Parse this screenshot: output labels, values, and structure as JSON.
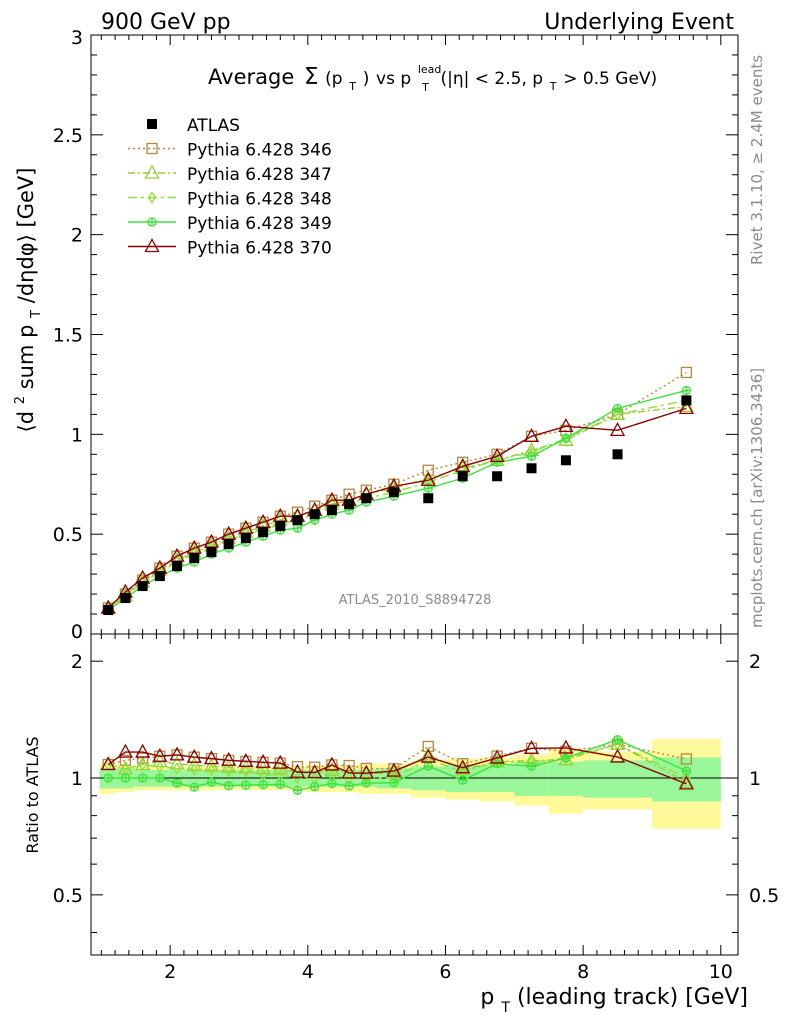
{
  "header": {
    "left": "900 GeV pp",
    "right": "Underlying Event"
  },
  "side_labels": {
    "rivet": "Rivet 3.1.10, ≥ 2.4M events",
    "mcplots": "mcplots.cern.ch [arXiv:1306.3436]"
  },
  "analysis_id": "ATLAS_2010_S8894728",
  "title_parts": {
    "average": "Average",
    "sigma": "Σ",
    "p": "(p",
    "sub_T": "T",
    "close": ")",
    "vs": " vs p",
    "sup_lead": "lead",
    "rest_a": " (|η| < 2.5, p",
    "rest_b": " > 0.5 GeV)"
  },
  "ylabel_parts": {
    "open": "⟨d",
    "sup2": "2",
    "mid": " sum p",
    "sub_T": "T",
    "rest": "/dηdφ⟩ [GeV]"
  },
  "xlabel_parts": {
    "p": "p",
    "sub_T": "T",
    "rest": " (leading track) [GeV]"
  },
  "ratio_ylabel": "Ratio to ATLAS",
  "colors": {
    "data": "#000000",
    "p346": "#b8863b",
    "p347": "#9acd32",
    "p348": "#8fe03a",
    "p349": "#3ce33c",
    "p370": "#8b0000",
    "band_inner": "#99f799",
    "band_outer": "#fffa99"
  },
  "chart_data": {
    "type": "scatter",
    "x_label": "p_T (leading track) [GeV]",
    "y_label": "⟨d² sum p_T/dηdφ⟩ [GeV]",
    "xlim": [
      0.85,
      10.25
    ],
    "main_ylim": [
      0,
      3
    ],
    "ratio_ylim": [
      0.35,
      2.35
    ],
    "x_ticks": [
      "2",
      "4",
      "6",
      "8",
      "10"
    ],
    "main_y_ticks": [
      "0",
      "0.5",
      "1",
      "1.5",
      "2",
      "2.5",
      "3"
    ],
    "ratio_y_ticks": [
      "0.5",
      "1",
      "2"
    ],
    "x": [
      1.1,
      1.35,
      1.6,
      1.85,
      2.1,
      2.35,
      2.6,
      2.85,
      3.1,
      3.35,
      3.6,
      3.85,
      4.1,
      4.35,
      4.6,
      4.85,
      5.25,
      5.75,
      6.25,
      6.75,
      7.25,
      7.75,
      8.5,
      9.5
    ],
    "x_bin_edges": [
      0.975,
      1.225,
      1.475,
      1.725,
      1.975,
      2.225,
      2.475,
      2.725,
      2.975,
      3.225,
      3.475,
      3.725,
      3.975,
      4.225,
      4.475,
      4.725,
      5.0,
      5.5,
      6.0,
      6.5,
      7.0,
      7.5,
      8.0,
      9.0,
      10.0
    ],
    "data": {
      "name": "ATLAS",
      "values": [
        0.12,
        0.18,
        0.24,
        0.29,
        0.34,
        0.38,
        0.41,
        0.45,
        0.48,
        0.51,
        0.54,
        0.57,
        0.6,
        0.62,
        0.65,
        0.68,
        0.71,
        0.68,
        0.79,
        0.79,
        0.83,
        0.87,
        0.9,
        1.17
      ]
    },
    "band": {
      "inner": [
        0.06,
        0.06,
        0.05,
        0.05,
        0.05,
        0.05,
        0.05,
        0.05,
        0.05,
        0.05,
        0.05,
        0.05,
        0.05,
        0.05,
        0.05,
        0.05,
        0.06,
        0.07,
        0.08,
        0.08,
        0.1,
        0.1,
        0.11,
        0.13
      ],
      "outer": [
        0.09,
        0.08,
        0.07,
        0.07,
        0.07,
        0.07,
        0.07,
        0.07,
        0.07,
        0.07,
        0.07,
        0.07,
        0.08,
        0.08,
        0.08,
        0.09,
        0.09,
        0.11,
        0.12,
        0.13,
        0.15,
        0.19,
        0.17,
        0.26
      ]
    },
    "series": [
      {
        "name": "Pythia 6.428 346",
        "key": "p346",
        "marker": "square",
        "dash": "2,3",
        "values": [
          0.13,
          0.2,
          0.27,
          0.33,
          0.39,
          0.43,
          0.46,
          0.5,
          0.53,
          0.56,
          0.59,
          0.61,
          0.64,
          0.67,
          0.7,
          0.72,
          0.75,
          0.82,
          0.86,
          0.9,
          0.99,
          1.02,
          1.1,
          1.31
        ]
      },
      {
        "name": "Pythia 6.428 347",
        "key": "p347",
        "marker": "triangle",
        "dash": "7,3,2,3",
        "values": [
          0.13,
          0.19,
          0.26,
          0.32,
          0.37,
          0.41,
          0.44,
          0.48,
          0.51,
          0.54,
          0.57,
          0.59,
          0.62,
          0.65,
          0.67,
          0.7,
          0.73,
          0.78,
          0.83,
          0.87,
          0.92,
          0.97,
          1.1,
          1.14
        ]
      },
      {
        "name": "Pythia 6.428 348",
        "key": "p348",
        "marker": "diamond",
        "dash": "9,4,3,4",
        "values": [
          0.13,
          0.19,
          0.26,
          0.31,
          0.36,
          0.4,
          0.43,
          0.47,
          0.5,
          0.52,
          0.55,
          0.57,
          0.6,
          0.63,
          0.65,
          0.68,
          0.71,
          0.76,
          0.82,
          0.87,
          0.91,
          0.98,
          1.1,
          1.17
        ]
      },
      {
        "name": "Pythia 6.428 349",
        "key": "p349",
        "marker": "circle-cross",
        "dash": "",
        "values": [
          0.12,
          0.18,
          0.24,
          0.29,
          0.33,
          0.36,
          0.4,
          0.43,
          0.46,
          0.49,
          0.52,
          0.53,
          0.57,
          0.6,
          0.62,
          0.66,
          0.69,
          0.73,
          0.78,
          0.86,
          0.89,
          0.98,
          1.13,
          1.22
        ]
      },
      {
        "name": "Pythia 6.428 370",
        "key": "p370",
        "marker": "triangle",
        "dash": "",
        "values": [
          0.13,
          0.21,
          0.28,
          0.33,
          0.39,
          0.43,
          0.46,
          0.5,
          0.53,
          0.56,
          0.59,
          0.59,
          0.62,
          0.67,
          0.67,
          0.7,
          0.74,
          0.77,
          0.84,
          0.89,
          0.99,
          1.04,
          1.02,
          1.13
        ]
      }
    ]
  }
}
